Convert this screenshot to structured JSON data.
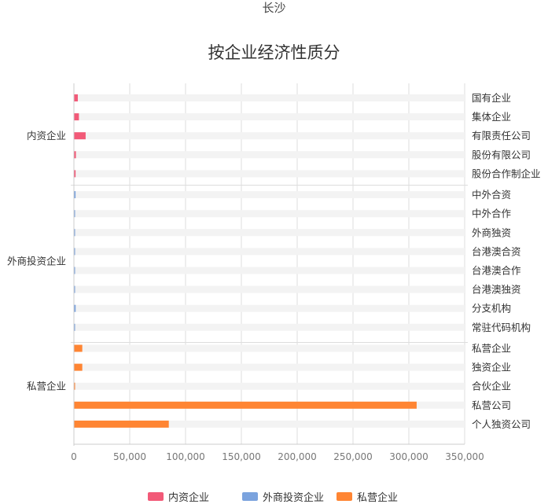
{
  "city": "长沙",
  "title": "按企业经济性质分",
  "chart_data": {
    "type": "bar",
    "orientation": "horizontal",
    "xlim": [
      0,
      350000
    ],
    "xticks": [
      "0",
      "50,000",
      "100,000",
      "150,000",
      "200,000",
      "250,000",
      "300,000",
      "350,000"
    ],
    "groups": [
      {
        "name": "内资企业",
        "color": "#f25a78",
        "items": [
          {
            "label": "国有企业",
            "value": 3500
          },
          {
            "label": "集体企业",
            "value": 4500
          },
          {
            "label": "有限责任公司",
            "value": 10500
          },
          {
            "label": "股份有限公司",
            "value": 1800
          },
          {
            "label": "股份合作制企业",
            "value": 1500
          }
        ]
      },
      {
        "name": "外商投资企业",
        "color": "#7ba3de",
        "items": [
          {
            "label": "中外合资",
            "value": 1500
          },
          {
            "label": "中外合作",
            "value": 800
          },
          {
            "label": "外商独资",
            "value": 1000
          },
          {
            "label": "台港澳合资",
            "value": 900
          },
          {
            "label": "台港澳合作",
            "value": 700
          },
          {
            "label": "台港澳独资",
            "value": 900
          },
          {
            "label": "分支机构",
            "value": 1600
          },
          {
            "label": "常驻代码机构",
            "value": 800
          }
        ]
      },
      {
        "name": "私营企业",
        "color": "#ff8533",
        "items": [
          {
            "label": "私营企业",
            "value": 7500
          },
          {
            "label": "独资企业",
            "value": 7500
          },
          {
            "label": "合伙企业",
            "value": 1000
          },
          {
            "label": "私营公司",
            "value": 307000
          },
          {
            "label": "个人独资公司",
            "value": 85000
          }
        ]
      }
    ],
    "legend": [
      "内资企业",
      "外商投资企业",
      "私营企业"
    ],
    "legend_position": "bottom",
    "grid": true,
    "track_color": "#f3f3f3",
    "grid_color": "#dddddd"
  }
}
